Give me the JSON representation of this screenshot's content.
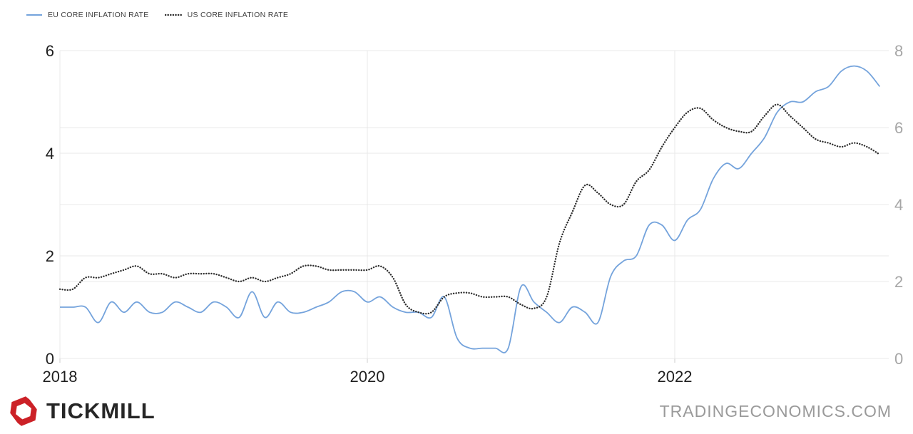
{
  "legend": [
    {
      "label": "EU CORE INFLATION RATE",
      "color": "#74a3dc",
      "style": "solid"
    },
    {
      "label": "US CORE INFLATION RATE",
      "color": "#2d2d2d",
      "style": "dotted"
    }
  ],
  "chart_data": {
    "type": "line",
    "x_start": "2018-01",
    "x_interval": "month",
    "x_tick_labels": [
      "2018",
      "2020",
      "2022"
    ],
    "grid": true,
    "legend_position": "top-left",
    "y_axis_left": {
      "ticks": [
        "0",
        "2",
        "4",
        "6"
      ],
      "range": [
        0,
        6
      ],
      "label_color": "#1f1f1f"
    },
    "y_axis_right": {
      "ticks": [
        "0",
        "2",
        "4",
        "6",
        "8"
      ],
      "range": [
        0,
        8
      ],
      "label_color": "#a6a6a6"
    },
    "series": [
      {
        "name": "EU CORE INFLATION RATE",
        "axis": "left",
        "color": "#74a3dc",
        "style": "solid",
        "values": [
          1.0,
          1.0,
          1.0,
          0.7,
          1.1,
          0.9,
          1.1,
          0.9,
          0.9,
          1.1,
          1.0,
          0.9,
          1.1,
          1.0,
          0.8,
          1.3,
          0.8,
          1.1,
          0.9,
          0.9,
          1.0,
          1.1,
          1.3,
          1.3,
          1.1,
          1.2,
          1.0,
          0.9,
          0.9,
          0.8,
          1.2,
          0.4,
          0.2,
          0.2,
          0.2,
          0.2,
          1.4,
          1.1,
          0.9,
          0.7,
          1.0,
          0.9,
          0.7,
          1.6,
          1.9,
          2.0,
          2.6,
          2.6,
          2.3,
          2.7,
          2.9,
          3.5,
          3.8,
          3.7,
          4.0,
          4.3,
          4.8,
          5.0,
          5.0,
          5.2,
          5.3,
          5.6,
          5.7,
          5.6,
          5.3
        ]
      },
      {
        "name": "US CORE INFLATION RATE",
        "axis": "right",
        "color": "#2d2d2d",
        "style": "dotted",
        "values": [
          1.8,
          1.8,
          2.1,
          2.1,
          2.2,
          2.3,
          2.4,
          2.2,
          2.2,
          2.1,
          2.2,
          2.2,
          2.2,
          2.1,
          2.0,
          2.1,
          2.0,
          2.1,
          2.2,
          2.4,
          2.4,
          2.3,
          2.3,
          2.3,
          2.3,
          2.4,
          2.1,
          1.4,
          1.2,
          1.2,
          1.6,
          1.7,
          1.7,
          1.6,
          1.6,
          1.6,
          1.4,
          1.3,
          1.6,
          3.0,
          3.8,
          4.5,
          4.3,
          4.0,
          4.0,
          4.6,
          4.9,
          5.5,
          6.0,
          6.4,
          6.5,
          6.2,
          6.0,
          5.9,
          5.9,
          6.3,
          6.6,
          6.3,
          6.0,
          5.7,
          5.6,
          5.5,
          5.6,
          5.5,
          5.3
        ]
      }
    ]
  },
  "footer": {
    "brand": "TICKMILL",
    "brand_color": "#cc2127",
    "source": "TRADINGECONOMICS.COM"
  },
  "colors": {
    "grid": "#e9e9e9",
    "tick": "#cccccc",
    "background": "#ffffff"
  }
}
